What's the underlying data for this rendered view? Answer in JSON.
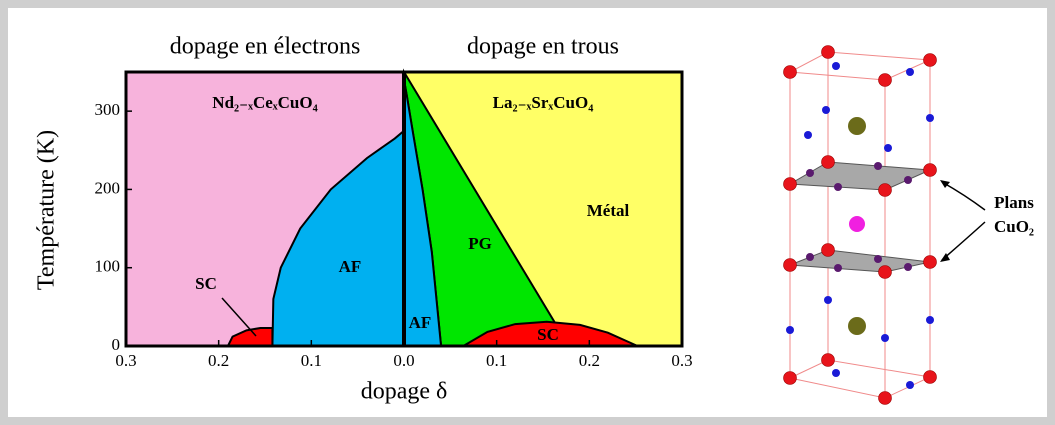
{
  "chart_data": {
    "type": "phase-diagram",
    "header_left": "dopage en électrons",
    "header_right": "dopage en trous",
    "compound_left": "Nd₂₋ₓCeₓCuO₄",
    "compound_right": "La₂₋ₓSrₓCuO₄",
    "xlabel": "dopage δ",
    "ylabel": "Température (K)",
    "xlim": [
      -0.3,
      0.3
    ],
    "ylim": [
      0,
      350
    ],
    "xticks": [
      {
        "value": -0.3,
        "label": "0.3"
      },
      {
        "value": -0.2,
        "label": "0.2"
      },
      {
        "value": -0.1,
        "label": "0.1"
      },
      {
        "value": 0,
        "label": "0.0"
      },
      {
        "value": 0.1,
        "label": "0.1"
      },
      {
        "value": 0.2,
        "label": "0.2"
      },
      {
        "value": 0.3,
        "label": "0.3"
      }
    ],
    "yticks": [
      0,
      100,
      200,
      300
    ],
    "background_colors": [
      "#f7b3dc",
      "#ffff66"
    ],
    "regions": [
      {
        "label": "AF",
        "color": "#00b0f0",
        "x": [
          0,
          -0.01,
          -0.04,
          -0.079,
          -0.112,
          -0.133,
          -0.141,
          -0.142,
          0
        ],
        "y": [
          275,
          265,
          240,
          200,
          150,
          100,
          60,
          0,
          0
        ]
      },
      {
        "label": "SC",
        "color": "#ff0000",
        "x": [
          -0.19,
          -0.185,
          -0.17,
          -0.155,
          -0.142,
          -0.142
        ],
        "y": [
          0,
          12,
          20,
          23,
          23,
          0
        ]
      },
      {
        "label": "PG",
        "color": "#00e600",
        "x": [
          0,
          0.178,
          0.04,
          0.03,
          0.02,
          0.01,
          0.003,
          0
        ],
        "y": [
          350,
          0,
          0,
          120,
          200,
          270,
          320,
          340
        ]
      },
      {
        "label": "AF",
        "color": "#00b0f0",
        "x": [
          0,
          0.003,
          0.01,
          0.02,
          0.03,
          0.04,
          0
        ],
        "y": [
          340,
          320,
          270,
          200,
          120,
          0,
          0
        ]
      },
      {
        "label": "SC",
        "color": "#ff0000",
        "x": [
          0.064,
          0.09,
          0.12,
          0.154,
          0.19,
          0.22,
          0.252
        ],
        "y": [
          0,
          18,
          28,
          31,
          27,
          17,
          0
        ]
      }
    ],
    "metal_label": "Métal",
    "structure_label_1": "Plans",
    "structure_label_2": "CuO₂"
  }
}
